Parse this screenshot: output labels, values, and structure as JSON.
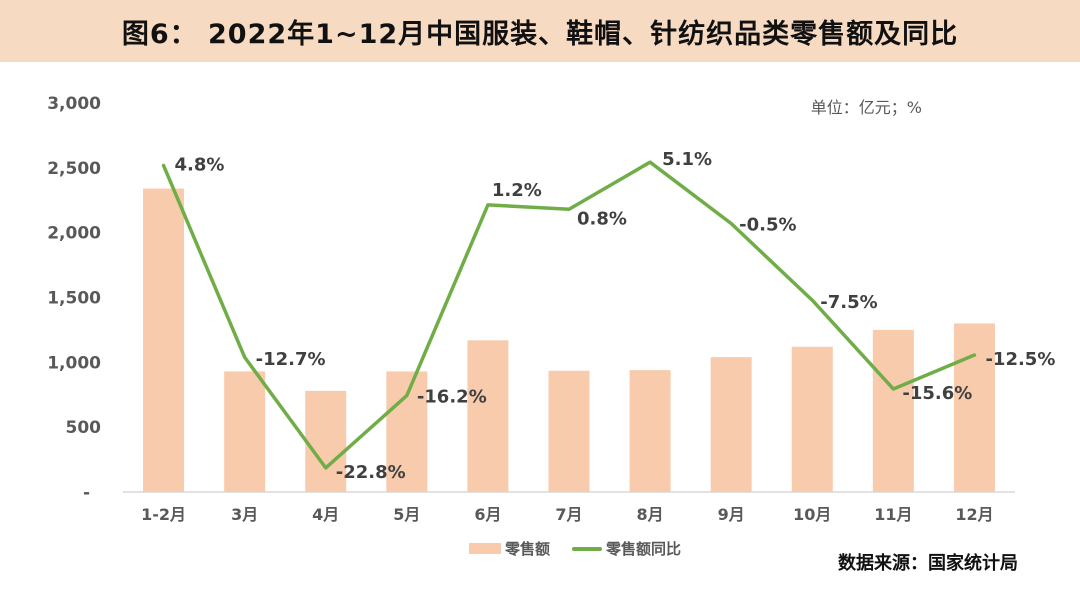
{
  "header": {
    "title": "图6： 2022年1~12月中国服装、鞋帽、针纺织品类零售额及同比",
    "background_color": "#F7DAC2"
  },
  "unit_label": "单位：亿元；%",
  "source": "数据来源：国家统计局",
  "legend": {
    "items": [
      {
        "label": "零售额",
        "swatch": "bar",
        "color": "#F8CBAD"
      },
      {
        "label": "零售额同比",
        "swatch": "line",
        "color": "#70AD47"
      }
    ]
  },
  "colors": {
    "bar": "#F8CBAD",
    "line": "#70AD47",
    "axis_line": "#D9D9D9",
    "tick_text": "#595959",
    "data_label_text": "#404040"
  },
  "chart_data": {
    "type": "bar",
    "title": "2022年1~12月中国服装、鞋帽、针纺织品类零售额及同比",
    "categories": [
      "1-2月",
      "3月",
      "4月",
      "5月",
      "6月",
      "7月",
      "8月",
      "9月",
      "10月",
      "11月",
      "12月"
    ],
    "series": [
      {
        "name": "零售额",
        "type": "bar",
        "axis": "left",
        "unit": "亿元",
        "color": "#F8CBAD",
        "values": [
          2340,
          930,
          780,
          930,
          1170,
          935,
          940,
          1040,
          1120,
          1250,
          1300
        ]
      },
      {
        "name": "零售额同比",
        "type": "line",
        "axis": "right",
        "unit": "%",
        "color": "#70AD47",
        "values": [
          4.8,
          -12.7,
          -22.8,
          -16.2,
          1.2,
          0.8,
          5.1,
          -0.5,
          -7.5,
          -15.6,
          -12.5
        ],
        "labels": [
          "4.8%",
          "-12.7%",
          "-22.8%",
          "-16.2%",
          "1.2%",
          "0.8%",
          "5.1%",
          "-0.5%",
          "-7.5%",
          "-15.6%",
          "-12.5%"
        ]
      }
    ],
    "left_axis": {
      "min": 0,
      "max": 3000,
      "tick_step": 500,
      "tick_labels": [
        "-",
        "500",
        "1,000",
        "1,500",
        "2,000",
        "2,500",
        "3,000"
      ]
    },
    "right_axis": {
      "min": -25,
      "max": 10.5,
      "visible": false
    },
    "gridlines": false,
    "legend_position": "bottom"
  }
}
